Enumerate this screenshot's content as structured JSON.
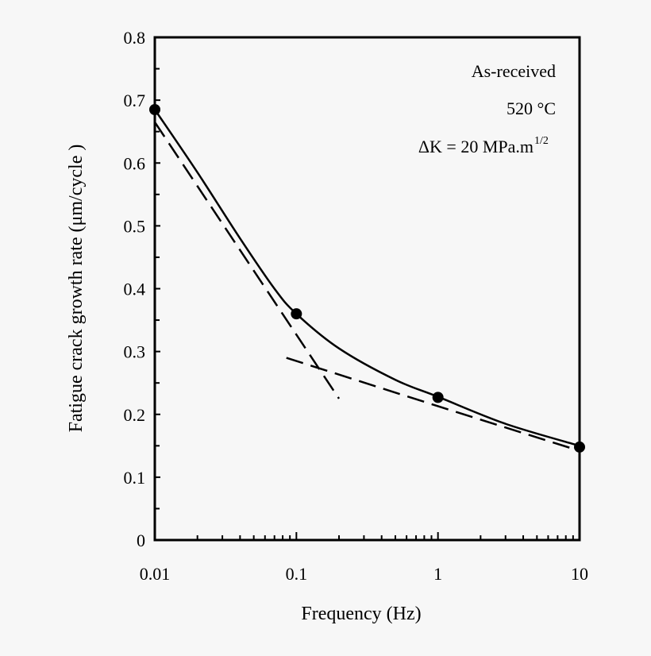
{
  "chart_data": {
    "type": "line",
    "title": "",
    "xlabel": "Frequency (Hz)",
    "ylabel": "Fatigue crack growth rate (μm/cycle )",
    "xscale": "log",
    "xlim": [
      0.01,
      10
    ],
    "ylim": [
      0,
      0.8
    ],
    "x_ticks": [
      0.01,
      0.1,
      1,
      10
    ],
    "x_tick_labels": [
      "0.01",
      "0.1",
      "1",
      "10"
    ],
    "y_ticks": [
      0,
      0.1,
      0.2,
      0.3,
      0.4,
      0.5,
      0.6,
      0.7,
      0.8
    ],
    "y_tick_labels": [
      "0",
      "0.1",
      "0.2",
      "0.3",
      "0.4",
      "0.5",
      "0.6",
      "0.7",
      "0.8"
    ],
    "grid": false,
    "annotations": [
      "As-received",
      "520 °C",
      "ΔK = 20 MPa.m",
      "1/2"
    ],
    "series": [
      {
        "style": "markers",
        "x": [
          0.01,
          0.1,
          1,
          10
        ],
        "y": [
          0.685,
          0.36,
          0.227,
          0.148
        ]
      },
      {
        "style": "solid",
        "x": [
          0.01,
          0.02,
          0.04,
          0.07,
          0.1,
          0.2,
          0.5,
          1,
          3,
          10
        ],
        "y": [
          0.685,
          0.585,
          0.48,
          0.4,
          0.36,
          0.305,
          0.255,
          0.228,
          0.185,
          0.15
        ]
      },
      {
        "style": "dashed",
        "x": [
          0.01,
          0.2
        ],
        "y": [
          0.665,
          0.225
        ]
      },
      {
        "style": "dashed",
        "x": [
          0.085,
          1,
          10
        ],
        "y": [
          0.29,
          0.213,
          0.142
        ]
      }
    ],
    "colors": {
      "line": "#000000",
      "background": "#f7f7f7"
    }
  }
}
